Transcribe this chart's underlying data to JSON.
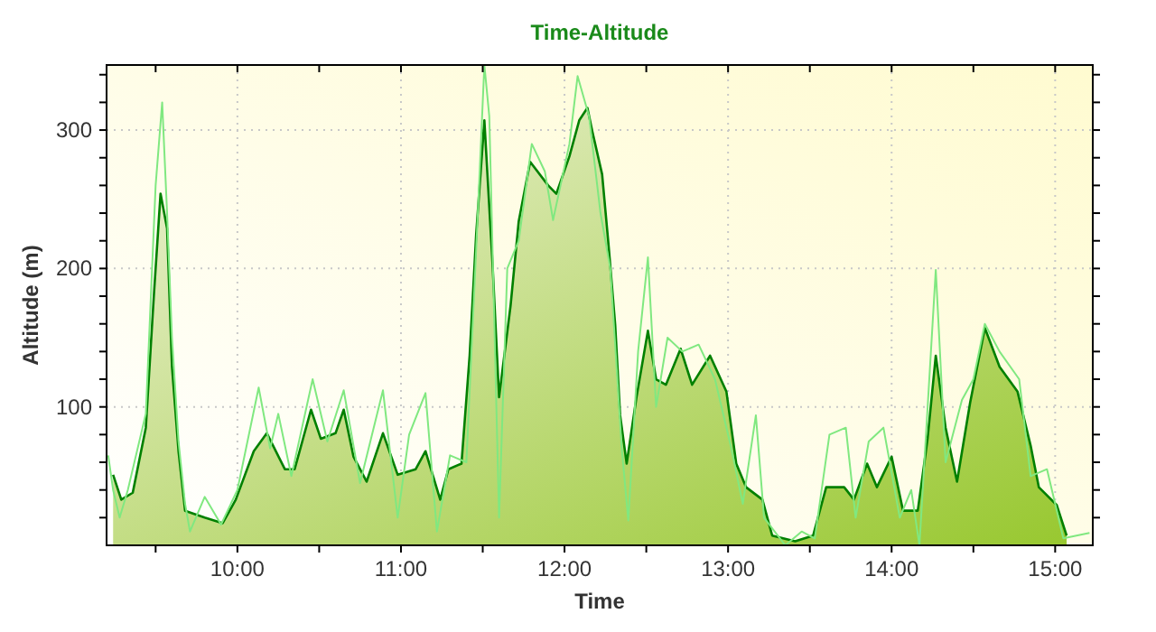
{
  "chart_data": {
    "type": "line",
    "title": "Time-Altitude",
    "xlabel": "Time",
    "ylabel": "Altitude (m)",
    "xlim": [
      9.2,
      15.23
    ],
    "xticks": [
      {
        "value": 9.5,
        "label": null
      },
      {
        "value": 10,
        "label": "10:00"
      },
      {
        "value": 10.5,
        "label": null
      },
      {
        "value": 11,
        "label": "11:00"
      },
      {
        "value": 11.5,
        "label": null
      },
      {
        "value": 12,
        "label": "12:00"
      },
      {
        "value": 12.5,
        "label": null
      },
      {
        "value": 13,
        "label": "13:00"
      },
      {
        "value": 13.5,
        "label": null
      },
      {
        "value": 14,
        "label": "14:00"
      },
      {
        "value": 14.5,
        "label": null
      },
      {
        "value": 15,
        "label": "15:00"
      }
    ],
    "ylim": [
      0,
      347
    ],
    "yticks": [
      {
        "value": 20,
        "label": null
      },
      {
        "value": 40,
        "label": null
      },
      {
        "value": 60,
        "label": null
      },
      {
        "value": 80,
        "label": null
      },
      100,
      {
        "value": 120,
        "label": null
      },
      {
        "value": 140,
        "label": null
      },
      {
        "value": 160,
        "label": null
      },
      {
        "value": 180,
        "label": null
      },
      200,
      {
        "value": 220,
        "label": null
      },
      {
        "value": 240,
        "label": null
      },
      {
        "value": 260,
        "label": null
      },
      {
        "value": 280,
        "label": null
      },
      300,
      {
        "value": 320,
        "label": null
      },
      {
        "value": 340,
        "label": null
      }
    ],
    "grid": true,
    "series": [
      {
        "type": "area",
        "color": "#008000",
        "x": [
          9.24,
          9.29,
          9.36,
          9.44,
          9.49,
          9.53,
          9.57,
          9.6,
          9.64,
          9.68,
          9.8,
          9.91,
          9.99,
          10.1,
          10.18,
          10.29,
          10.35,
          10.45,
          10.51,
          10.6,
          10.65,
          10.71,
          10.79,
          10.89,
          10.98,
          11.09,
          11.15,
          11.24,
          11.29,
          11.37,
          11.42,
          11.46,
          11.51,
          11.56,
          11.6,
          11.67,
          11.72,
          11.79,
          11.9,
          11.95,
          12.03,
          12.09,
          12.14,
          12.17,
          12.23,
          12.27,
          12.31,
          12.34,
          12.38,
          12.44,
          12.51,
          12.56,
          12.62,
          12.71,
          12.78,
          12.89,
          12.99,
          13.05,
          13.11,
          13.21,
          13.27,
          13.41,
          13.52,
          13.6,
          13.71,
          13.77,
          13.85,
          13.91,
          14,
          14.07,
          14.16,
          14.22,
          14.27,
          14.33,
          14.4,
          14.48,
          14.57,
          14.66,
          14.77,
          14.85,
          14.9,
          15.01,
          15.07
        ],
        "values": [
          51,
          33,
          38,
          85,
          182,
          254,
          229,
          129,
          68,
          25,
          20,
          16,
          33,
          68,
          81,
          55,
          55,
          98,
          77,
          81,
          98,
          64,
          46,
          81,
          51,
          55,
          68,
          33,
          55,
          59,
          137,
          225,
          307,
          203,
          107,
          173,
          234,
          277,
          260,
          254,
          281,
          307,
          316,
          299,
          268,
          216,
          159,
          94,
          59,
          107,
          155,
          120,
          116,
          142,
          116,
          137,
          111,
          59,
          42,
          33,
          7,
          3,
          7,
          42,
          42,
          33,
          59,
          42,
          64,
          25,
          25,
          77,
          137,
          85,
          46,
          103,
          157,
          129,
          111,
          72,
          42,
          29,
          7
        ]
      },
      {
        "type": "line",
        "color": "#80e880",
        "x": [
          9.21,
          9.24,
          9.28,
          9.33,
          9.44,
          9.5,
          9.54,
          9.57,
          9.6,
          9.64,
          9.68,
          9.71,
          9.8,
          9.9,
          10,
          10.13,
          10.2,
          10.25,
          10.33,
          10.46,
          10.55,
          10.65,
          10.75,
          10.89,
          10.98,
          11.05,
          11.15,
          11.22,
          11.3,
          11.4,
          11.47,
          11.51,
          11.54,
          11.6,
          11.65,
          11.72,
          11.8,
          11.88,
          11.93,
          12.03,
          12.08,
          12.15,
          12.22,
          12.28,
          12.35,
          12.39,
          12.45,
          12.51,
          12.56,
          12.63,
          12.72,
          12.82,
          12.92,
          13.02,
          13.09,
          13.17,
          13.22,
          13.35,
          13.45,
          13.53,
          13.62,
          13.72,
          13.78,
          13.86,
          13.95,
          14.05,
          14.12,
          14.17,
          14.27,
          14.33,
          14.43,
          14.5,
          14.57,
          14.66,
          14.78,
          14.85,
          14.95,
          15.05,
          15.21
        ],
        "values": [
          65,
          40,
          20,
          40,
          95,
          260,
          320,
          240,
          150,
          75,
          30,
          10,
          35,
          15,
          40,
          114,
          70,
          95,
          50,
          120,
          75,
          112,
          45,
          112,
          20,
          80,
          110,
          10,
          65,
          60,
          240,
          347,
          310,
          20,
          200,
          220,
          290,
          270,
          235,
          290,
          339,
          310,
          240,
          200,
          70,
          18,
          140,
          208,
          100,
          150,
          140,
          145,
          120,
          70,
          30,
          94,
          20,
          0,
          10,
          5,
          80,
          85,
          20,
          75,
          85,
          20,
          40,
          0,
          199,
          60,
          105,
          120,
          160,
          140,
          120,
          50,
          55,
          5,
          9
        ]
      }
    ]
  }
}
